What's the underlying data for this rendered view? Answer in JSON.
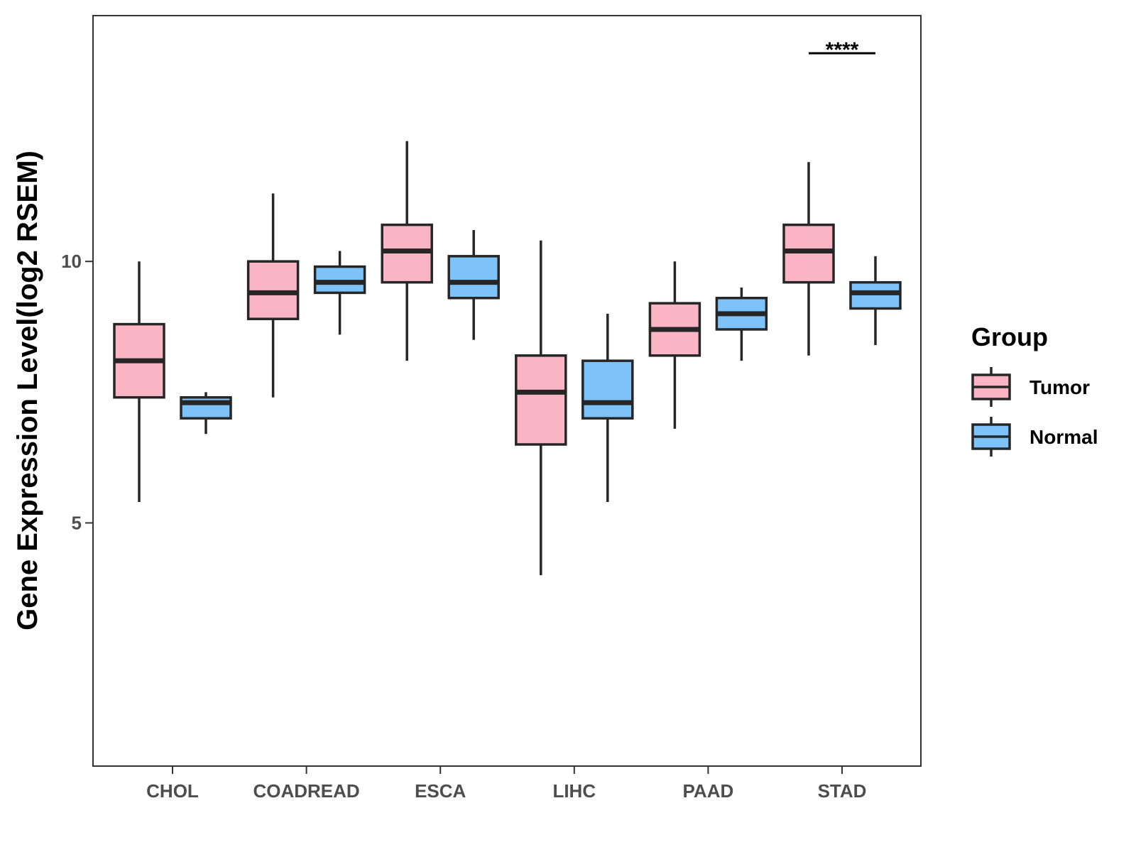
{
  "chart_data": {
    "type": "box",
    "title": "",
    "xlabel": "",
    "ylabel": "Gene Expression Level(log2 RSEM)",
    "ylim": [
      0.35,
      14.7
    ],
    "yticks": [
      5,
      10
    ],
    "ytick_labels": [
      "5",
      "10"
    ],
    "categories": [
      "CHOL",
      "COADREAD",
      "ESCA",
      "LIHC",
      "PAAD",
      "STAD"
    ],
    "legend": {
      "title": "Group",
      "position": "right"
    },
    "series": [
      {
        "name": "Tumor",
        "color": "#FBB4C4",
        "boxes": [
          {
            "min": 5.4,
            "q1": 7.4,
            "median": 8.1,
            "q3": 8.8,
            "max": 10.0
          },
          {
            "min": 7.4,
            "q1": 8.9,
            "median": 9.4,
            "q3": 10.0,
            "max": 11.3
          },
          {
            "min": 8.1,
            "q1": 9.6,
            "median": 10.2,
            "q3": 10.7,
            "max": 12.3
          },
          {
            "min": 4.0,
            "q1": 6.5,
            "median": 7.5,
            "q3": 8.2,
            "max": 10.4
          },
          {
            "min": 6.8,
            "q1": 8.2,
            "median": 8.7,
            "q3": 9.2,
            "max": 10.0
          },
          {
            "min": 8.2,
            "q1": 9.6,
            "median": 10.2,
            "q3": 10.7,
            "max": 11.9
          }
        ]
      },
      {
        "name": "Normal",
        "color": "#7DC3F9",
        "boxes": [
          {
            "min": 6.7,
            "q1": 7.0,
            "median": 7.3,
            "q3": 7.4,
            "max": 7.5
          },
          {
            "min": 8.6,
            "q1": 9.4,
            "median": 9.6,
            "q3": 9.9,
            "max": 10.2
          },
          {
            "min": 8.5,
            "q1": 9.3,
            "median": 9.6,
            "q3": 10.1,
            "max": 10.6
          },
          {
            "min": 5.4,
            "q1": 7.0,
            "median": 7.3,
            "q3": 8.1,
            "max": 9.0
          },
          {
            "min": 8.1,
            "q1": 8.7,
            "median": 9.0,
            "q3": 9.3,
            "max": 9.5
          },
          {
            "min": 8.4,
            "q1": 9.1,
            "median": 9.4,
            "q3": 9.6,
            "max": 10.1
          }
        ]
      }
    ],
    "annotations": [
      {
        "category": "STAD",
        "text": "****"
      }
    ]
  }
}
